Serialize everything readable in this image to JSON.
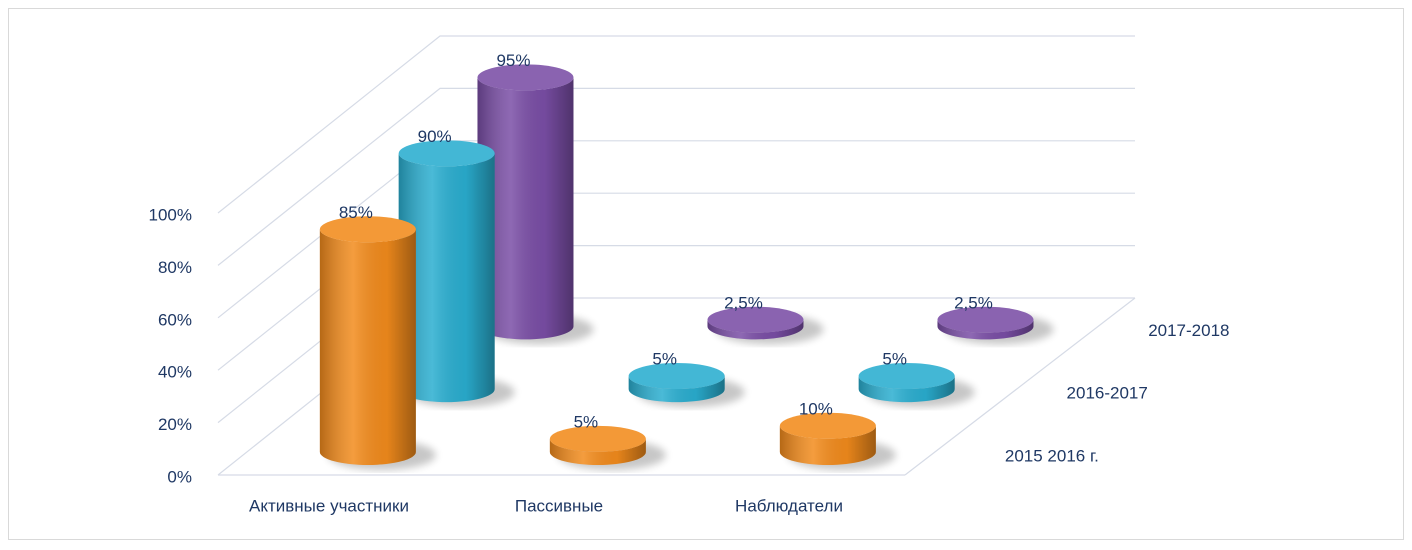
{
  "chart_data": {
    "type": "bar3d",
    "categories": [
      "Активные участники",
      "Пассивные",
      "Наблюдатели"
    ],
    "series": [
      {
        "name": "2015 2016 г.",
        "color": "#f28b1c",
        "values": [
          85,
          5,
          10
        ],
        "value_labels": [
          "85%",
          "5%",
          "10%"
        ]
      },
      {
        "name": "2016-2017",
        "color": "#2aaed0",
        "values": [
          90,
          5,
          5
        ],
        "value_labels": [
          "90%",
          "5%",
          "5%"
        ]
      },
      {
        "name": "2017-2018",
        "color": "#7a4ea6",
        "values": [
          95,
          2.5,
          2.5
        ],
        "value_labels": [
          "95%",
          "2,5%",
          "2,5%"
        ]
      }
    ],
    "ylim": [
      0,
      100
    ],
    "yticks": [
      {
        "value": 0,
        "label": "0%"
      },
      {
        "value": 20,
        "label": "20%"
      },
      {
        "value": 40,
        "label": "40%"
      },
      {
        "value": 60,
        "label": "60%"
      },
      {
        "value": 80,
        "label": "80%"
      },
      {
        "value": 100,
        "label": "100%"
      }
    ],
    "grid": true
  }
}
